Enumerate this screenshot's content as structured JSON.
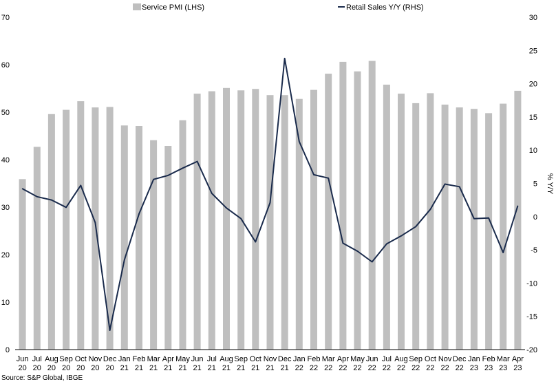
{
  "chart_data": {
    "type": "bar",
    "categories": [
      [
        "Jun",
        "20"
      ],
      [
        "Jul",
        "20"
      ],
      [
        "Aug",
        "20"
      ],
      [
        "Sep",
        "20"
      ],
      [
        "Oct",
        "20"
      ],
      [
        "Nov",
        "20"
      ],
      [
        "Dec",
        "20"
      ],
      [
        "Jan",
        "21"
      ],
      [
        "Feb",
        "21"
      ],
      [
        "Mar",
        "21"
      ],
      [
        "Apr",
        "21"
      ],
      [
        "May",
        "21"
      ],
      [
        "Jun",
        "21"
      ],
      [
        "Jul",
        "21"
      ],
      [
        "Aug",
        "21"
      ],
      [
        "Sep",
        "21"
      ],
      [
        "Oct",
        "21"
      ],
      [
        "Nov",
        "21"
      ],
      [
        "Dec",
        "21"
      ],
      [
        "Jan",
        "22"
      ],
      [
        "Feb",
        "22"
      ],
      [
        "Mar",
        "22"
      ],
      [
        "Apr",
        "22"
      ],
      [
        "May",
        "22"
      ],
      [
        "Jun",
        "22"
      ],
      [
        "Jul",
        "22"
      ],
      [
        "Aug",
        "22"
      ],
      [
        "Sep",
        "22"
      ],
      [
        "Oct",
        "22"
      ],
      [
        "Nov",
        "22"
      ],
      [
        "Dec",
        "22"
      ],
      [
        "Jan",
        "23"
      ],
      [
        "Feb",
        "23"
      ],
      [
        "Mar",
        "23"
      ],
      [
        "Apr",
        "23"
      ]
    ],
    "series": [
      {
        "name": "Service PMI (LHS)",
        "type": "bar",
        "axis": "left",
        "color": "#bfbfbf",
        "values": [
          35.9,
          42.7,
          49.6,
          50.5,
          52.3,
          51.0,
          51.1,
          47.2,
          47.1,
          44.1,
          42.9,
          48.3,
          53.9,
          54.4,
          55.1,
          54.6,
          54.9,
          53.6,
          53.6,
          52.8,
          54.7,
          58.1,
          60.6,
          58.6,
          60.8,
          55.8,
          53.9,
          51.9,
          54.0,
          51.6,
          51.0,
          50.7,
          49.8,
          51.8,
          54.5
        ]
      },
      {
        "name": "Retail Sales Y/Y (RHS)",
        "type": "line",
        "axis": "right",
        "color": "#1a2b4c",
        "values": [
          4.2,
          3.0,
          2.5,
          1.4,
          4.7,
          -0.9,
          -17.1,
          -6.5,
          0.4,
          5.6,
          6.2,
          7.3,
          8.3,
          3.5,
          1.3,
          -0.3,
          -3.8,
          2.1,
          23.8,
          11.3,
          6.3,
          5.8,
          -4.0,
          -5.2,
          -6.8,
          -4.1,
          -2.9,
          -1.5,
          1.1,
          4.9,
          4.5,
          -0.3,
          -0.2,
          -5.4,
          1.6
        ]
      }
    ],
    "y_left": {
      "ylim": [
        0,
        70
      ],
      "ticks": [
        "0",
        "10",
        "20",
        "30",
        "40",
        "50",
        "60",
        "70"
      ]
    },
    "y_right": {
      "ylim": [
        -20,
        30
      ],
      "ticks": [
        "-20",
        "-15",
        "-10",
        "-5",
        "0",
        "5",
        "10",
        "15",
        "20",
        "25",
        "30"
      ],
      "label": "% Y/Y"
    },
    "legend": {
      "placement": "top"
    },
    "grid": false,
    "source": "Source: S&P Global, IBGE"
  }
}
